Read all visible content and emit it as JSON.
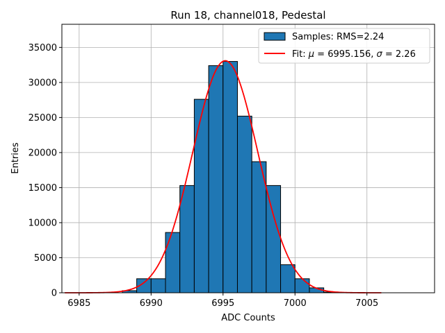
{
  "chart_data": {
    "type": "bar",
    "title": "Run 18, channel018, Pedestal",
    "xlabel": "ADC Counts",
    "ylabel": "Entries",
    "xlim": [
      6983.8,
      7009.7
    ],
    "ylim": [
      0,
      38300
    ],
    "xticks": [
      6985,
      6990,
      6995,
      7000,
      7005
    ],
    "yticks": [
      0,
      5000,
      10000,
      15000,
      20000,
      25000,
      30000,
      35000
    ],
    "grid": true,
    "legend_position": "top-right",
    "histogram": {
      "name": "Samples: RMS=2.24",
      "color": "#1f77b4",
      "edge_color": "#000000",
      "bins": [
        {
          "x0": 6988,
          "x1": 6989,
          "count": 300
        },
        {
          "x0": 6989,
          "x1": 6990,
          "count": 2000
        },
        {
          "x0": 6990,
          "x1": 6991,
          "count": 2000
        },
        {
          "x0": 6991,
          "x1": 6992,
          "count": 8600
        },
        {
          "x0": 6992,
          "x1": 6993,
          "count": 15300
        },
        {
          "x0": 6993,
          "x1": 6994,
          "count": 27600
        },
        {
          "x0": 6994,
          "x1": 6995,
          "count": 32400
        },
        {
          "x0": 6995,
          "x1": 6996,
          "count": 33000
        },
        {
          "x0": 6996,
          "x1": 6997,
          "count": 25200
        },
        {
          "x0": 6997,
          "x1": 6998,
          "count": 18700
        },
        {
          "x0": 6998,
          "x1": 6999,
          "count": 15300
        },
        {
          "x0": 6999,
          "x1": 7000,
          "count": 4000
        },
        {
          "x0": 7000,
          "x1": 7001,
          "count": 2000
        },
        {
          "x0": 7001,
          "x1": 7002,
          "count": 700
        },
        {
          "x0": 7002,
          "x1": 7003,
          "count": 100
        }
      ]
    },
    "fit": {
      "name": "Fit: μ = 6995.156, σ = 2.26",
      "label_prefix": "Fit: ",
      "label_math_mu": "μ",
      "label_mid": " = 6995.156, ",
      "label_math_sigma": "σ",
      "label_suffix": " = 2.26",
      "color": "#ff0000",
      "mu": 6995.156,
      "sigma": 2.26,
      "amplitude": 33100,
      "x_range": [
        6984,
        7006
      ]
    }
  }
}
